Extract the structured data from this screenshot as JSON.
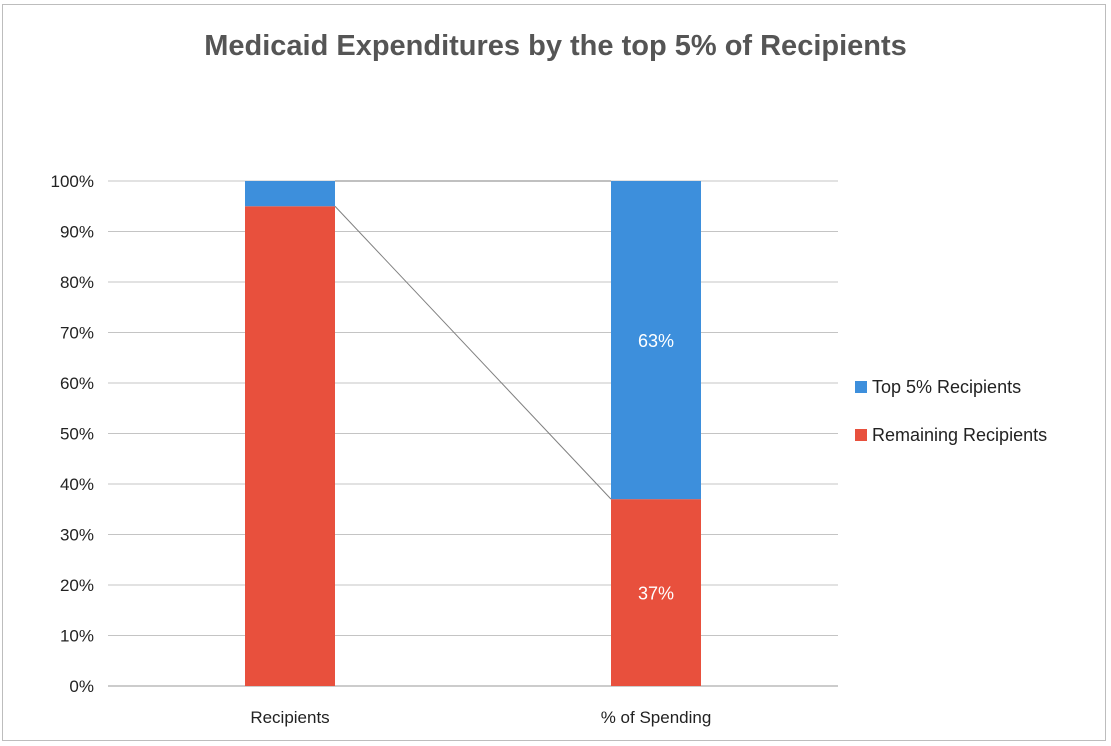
{
  "chart_data": {
    "type": "bar",
    "stacked": true,
    "title": "Medicaid Expenditures by the top 5% of Recipients",
    "categories": [
      "Recipients",
      "% of Spending"
    ],
    "series": [
      {
        "name": "Remaining Recipients",
        "values": [
          95,
          37
        ],
        "color": "#e8503d",
        "data_labels": [
          "",
          "37%"
        ]
      },
      {
        "name": "Top 5% Recipients",
        "values": [
          5,
          63
        ],
        "color": "#3d8fdc",
        "data_labels": [
          "",
          "63%"
        ]
      }
    ],
    "ylim": [
      0,
      100
    ],
    "yticks": [
      "0%",
      "10%",
      "20%",
      "30%",
      "40%",
      "50%",
      "60%",
      "70%",
      "80%",
      "90%",
      "100%"
    ],
    "grid": true,
    "series_lines": true,
    "legend": {
      "position": "right",
      "entries": [
        "Top 5% Recipients",
        "Remaining Recipients"
      ]
    }
  }
}
